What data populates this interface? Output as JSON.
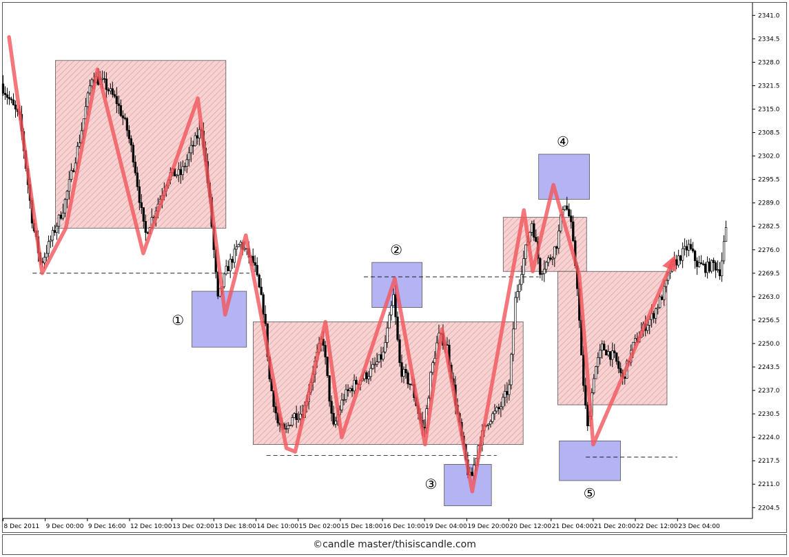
{
  "footer": {
    "copyright": "©candle master/thisiscandle.com"
  },
  "colors": {
    "candle": "#000000",
    "zigzag": "#f2555a",
    "range_fill": "#f6d2d2",
    "range_hatch": "#e2a0a0",
    "range_border": "#555555",
    "pivot_fill": "#b4b4f4",
    "pivot_border": "#555555",
    "dash_line": "#000000"
  },
  "chart_data": {
    "type": "candlestick",
    "title": "",
    "xlabel": "",
    "ylabel": "",
    "x_range": [
      0,
      100
    ],
    "ylim": [
      2201.5,
      2344.5
    ],
    "y_ticks": [
      2341.0,
      2334.5,
      2328.0,
      2321.5,
      2315.0,
      2308.5,
      2302.0,
      2295.5,
      2289.0,
      2282.5,
      2276.0,
      2269.5,
      2263.0,
      2256.5,
      2250.0,
      2243.5,
      2237.0,
      2230.5,
      2224.0,
      2217.5,
      2211.0,
      2204.5
    ],
    "x_ticks": [
      {
        "pos": 0,
        "label": "8 Dec 2011"
      },
      {
        "pos": 5.71,
        "label": "9 Dec 00:00"
      },
      {
        "pos": 11.43,
        "label": "9 Dec 16:00"
      },
      {
        "pos": 17.14,
        "label": "12 Dec 10:00"
      },
      {
        "pos": 22.86,
        "label": "13 Dec 02:00"
      },
      {
        "pos": 28.57,
        "label": "13 Dec 18:00"
      },
      {
        "pos": 34.29,
        "label": "14 Dec 10:00"
      },
      {
        "pos": 40.0,
        "label": "15 Dec 02:00"
      },
      {
        "pos": 45.71,
        "label": "15 Dec 18:00"
      },
      {
        "pos": 51.43,
        "label": "16 Dec 10:00"
      },
      {
        "pos": 57.14,
        "label": "19 Dec 04:00"
      },
      {
        "pos": 62.86,
        "label": "19 Dec 20:00"
      },
      {
        "pos": 68.57,
        "label": "20 Dec 12:00"
      },
      {
        "pos": 74.29,
        "label": "21 Dec 04:00"
      },
      {
        "pos": 80.0,
        "label": "21 Dec 20:00"
      },
      {
        "pos": 85.71,
        "label": "22 Dec 12:00"
      },
      {
        "pos": 91.43,
        "label": "23 Dec 04:00"
      }
    ],
    "price_path": [
      [
        0,
        2322
      ],
      [
        2.6,
        2312
      ],
      [
        4.3,
        2283
      ],
      [
        5.4,
        2272
      ],
      [
        6.8,
        2279
      ],
      [
        8.5,
        2288
      ],
      [
        10.6,
        2306
      ],
      [
        12.3,
        2324
      ],
      [
        14.0,
        2322
      ],
      [
        15.7,
        2317
      ],
      [
        17.0,
        2310
      ],
      [
        18.0,
        2301
      ],
      [
        19.5,
        2280
      ],
      [
        21.5,
        2290
      ],
      [
        22.8,
        2297
      ],
      [
        24.4,
        2297
      ],
      [
        25.8,
        2304
      ],
      [
        27.2,
        2310
      ],
      [
        28.3,
        2289
      ],
      [
        29.4,
        2262
      ],
      [
        30.5,
        2270
      ],
      [
        32.4,
        2278
      ],
      [
        34.3,
        2272
      ],
      [
        35.7,
        2258
      ],
      [
        36.4,
        2240
      ],
      [
        37.5,
        2228
      ],
      [
        38.5,
        2225
      ],
      [
        39.5,
        2230
      ],
      [
        41.0,
        2231
      ],
      [
        42.6,
        2245
      ],
      [
        43.6,
        2252
      ],
      [
        45.0,
        2226
      ],
      [
        46.4,
        2235
      ],
      [
        48.0,
        2239
      ],
      [
        50.0,
        2242
      ],
      [
        51.8,
        2247
      ],
      [
        53.2,
        2263
      ],
      [
        54.1,
        2243
      ],
      [
        55.7,
        2238
      ],
      [
        57.3,
        2225
      ],
      [
        58.3,
        2242
      ],
      [
        59.3,
        2252
      ],
      [
        60.4,
        2250
      ],
      [
        61.9,
        2230
      ],
      [
        63.2,
        2215
      ],
      [
        63.7,
        2212
      ],
      [
        64.7,
        2222
      ],
      [
        66.1,
        2229
      ],
      [
        67.6,
        2232
      ],
      [
        68.9,
        2238
      ],
      [
        69.7,
        2262
      ],
      [
        71.0,
        2275
      ],
      [
        72.0,
        2284
      ],
      [
        73.1,
        2270
      ],
      [
        74.5,
        2274
      ],
      [
        75.4,
        2278
      ],
      [
        76.3,
        2290
      ],
      [
        77.2,
        2284
      ],
      [
        78.1,
        2267
      ],
      [
        78.7,
        2245
      ],
      [
        79.5,
        2226
      ],
      [
        80.4,
        2242
      ],
      [
        81.5,
        2249
      ],
      [
        83.2,
        2246
      ],
      [
        84.3,
        2240
      ],
      [
        85.6,
        2249
      ],
      [
        87.0,
        2254
      ],
      [
        88.4,
        2258
      ],
      [
        89.8,
        2264
      ],
      [
        90.8,
        2271
      ],
      [
        92.0,
        2274
      ],
      [
        93.2,
        2277
      ],
      [
        94.4,
        2272
      ],
      [
        95.6,
        2271
      ],
      [
        96.6,
        2272
      ],
      [
        97.5,
        2270
      ],
      [
        97.9,
        2276
      ],
      [
        98.2,
        2281
      ]
    ],
    "zigzag": [
      [
        0.8,
        2335
      ],
      [
        5.3,
        2269.5
      ],
      [
        8.5,
        2282
      ],
      [
        12.8,
        2326
      ],
      [
        19.0,
        2275
      ],
      [
        26.4,
        2318
      ],
      [
        30.1,
        2258
      ],
      [
        32.9,
        2280
      ],
      [
        38.4,
        2221
      ],
      [
        39.6,
        2220
      ],
      [
        43.7,
        2256
      ],
      [
        45.9,
        2224
      ],
      [
        53.1,
        2268
      ],
      [
        57.2,
        2222
      ],
      [
        59.5,
        2254
      ],
      [
        63.6,
        2209
      ],
      [
        70.6,
        2287
      ],
      [
        71.8,
        2270
      ],
      [
        74.6,
        2294
      ],
      [
        78.1,
        2269
      ],
      [
        80.0,
        2222
      ],
      [
        90.8,
        2273
      ]
    ],
    "ranges": [
      {
        "x0": 7.1,
        "x1": 30.2,
        "y0": 2282,
        "y1": 2328.5
      },
      {
        "x0": 33.9,
        "x1": 70.5,
        "y0": 2222,
        "y1": 2256
      },
      {
        "x0": 67.8,
        "x1": 79.1,
        "y0": 2270,
        "y1": 2285
      },
      {
        "x0": 75.2,
        "x1": 90.0,
        "y0": 2233,
        "y1": 2270
      }
    ],
    "pivots": [
      {
        "label": "①",
        "x0": 25.6,
        "x1": 33.0,
        "y0": 2249,
        "y1": 2264.5,
        "label_x": 23.7,
        "label_y": 2256.5
      },
      {
        "label": "②",
        "x0": 50.0,
        "x1": 56.8,
        "y0": 2260,
        "y1": 2272.5,
        "label_x": 53.3,
        "label_y": 2276
      },
      {
        "label": "③",
        "x0": 59.8,
        "x1": 66.2,
        "y0": 2205,
        "y1": 2216.5,
        "label_x": 58.0,
        "label_y": 2211
      },
      {
        "label": "④",
        "x0": 72.6,
        "x1": 79.5,
        "y0": 2290,
        "y1": 2302.5,
        "label_x": 75.9,
        "label_y": 2306
      },
      {
        "label": "⑤",
        "x0": 75.4,
        "x1": 83.7,
        "y0": 2212,
        "y1": 2223,
        "label_x": 79.5,
        "label_y": 2208.5
      }
    ],
    "levels": [
      {
        "x0": 4.0,
        "x1": 33.4,
        "y": 2269.5
      },
      {
        "x0": 48.9,
        "x1": 72.6,
        "y": 2268.5
      },
      {
        "x0": 35.7,
        "x1": 66.9,
        "y": 2219
      },
      {
        "x0": 79.0,
        "x1": 91.4,
        "y": 2218.5
      }
    ]
  }
}
